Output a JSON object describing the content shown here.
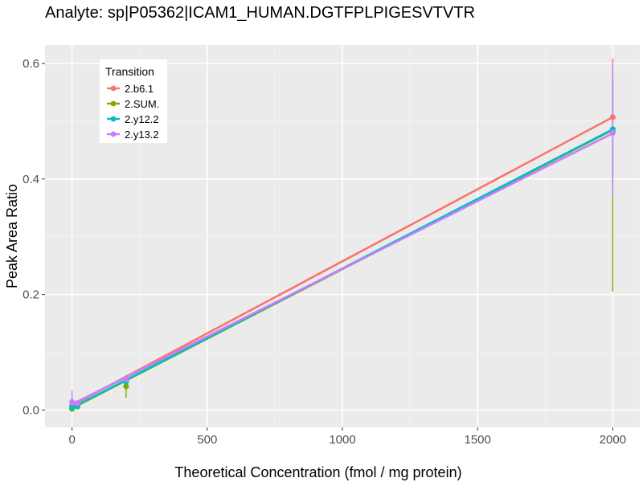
{
  "chart_data": {
    "type": "line",
    "title": "Analyte: sp|P05362|ICAM1_HUMAN.DGTFPLPIGESVTVTR",
    "xlabel": "Theoretical Concentration (fmol / mg protein)",
    "ylabel": "Peak Area Ratio",
    "xlim": [
      -100,
      2100
    ],
    "ylim": [
      -0.03,
      0.632
    ],
    "x_ticks": [
      0,
      500,
      1000,
      1500,
      2000
    ],
    "x_tick_labels": [
      "0",
      "500",
      "1000",
      "1500",
      "2000"
    ],
    "y_ticks": [
      0.0,
      0.2,
      0.4,
      0.6
    ],
    "y_tick_labels": [
      "0.0",
      "0.2",
      "0.4",
      "0.6"
    ],
    "grid": true,
    "legend": {
      "title": "Transition",
      "position": "top-left"
    },
    "series": [
      {
        "name": "2.b6.1",
        "color": "#F8766D",
        "fit": [
          [
            0,
            0.008
          ],
          [
            2000,
            0.507
          ]
        ],
        "points": [
          {
            "x": 0,
            "y": 0.007,
            "err": [
              0.004,
              0.01
            ]
          },
          {
            "x": 20,
            "y": 0.009,
            "err": [
              0.006,
              0.012
            ]
          },
          {
            "x": 200,
            "y": 0.052,
            "err": [
              0.048,
              0.056
            ]
          },
          {
            "x": 2000,
            "y": 0.507,
            "err": [
              0.405,
              0.609
            ]
          }
        ]
      },
      {
        "name": "2.SUM.",
        "color": "#7CAE00",
        "fit": [
          [
            0,
            0.003
          ],
          [
            2000,
            0.485
          ]
        ],
        "points": [
          {
            "x": 0,
            "y": 0.002,
            "err": [
              0.0,
              0.004
            ]
          },
          {
            "x": 20,
            "y": 0.006,
            "err": [
              0.004,
              0.008
            ]
          },
          {
            "x": 200,
            "y": 0.041,
            "err": [
              0.021,
              0.06
            ]
          },
          {
            "x": 2000,
            "y": 0.482,
            "err": [
              0.205,
              0.578
            ]
          }
        ]
      },
      {
        "name": "2.y12.2",
        "color": "#00BFC4",
        "fit": [
          [
            0,
            0.004
          ],
          [
            2000,
            0.486
          ]
        ],
        "points": [
          {
            "x": 0,
            "y": 0.004,
            "err": [
              0.002,
              0.006
            ]
          },
          {
            "x": 20,
            "y": 0.007,
            "err": [
              0.005,
              0.009
            ]
          },
          {
            "x": 200,
            "y": 0.049,
            "err": [
              0.046,
              0.052
            ]
          },
          {
            "x": 2000,
            "y": 0.486,
            "err": [
              0.39,
              0.58
            ]
          }
        ]
      },
      {
        "name": "2.y13.2",
        "color": "#C77CFF",
        "fit": [
          [
            0,
            0.01
          ],
          [
            2000,
            0.479
          ]
        ],
        "points": [
          {
            "x": 0,
            "y": 0.014,
            "err": [
              0.0,
              0.034
            ]
          },
          {
            "x": 20,
            "y": 0.012,
            "err": [
              0.008,
              0.016
            ]
          },
          {
            "x": 200,
            "y": 0.053,
            "err": [
              0.05,
              0.056
            ]
          },
          {
            "x": 2000,
            "y": 0.48,
            "err": [
              0.37,
              0.595
            ]
          }
        ]
      }
    ]
  }
}
